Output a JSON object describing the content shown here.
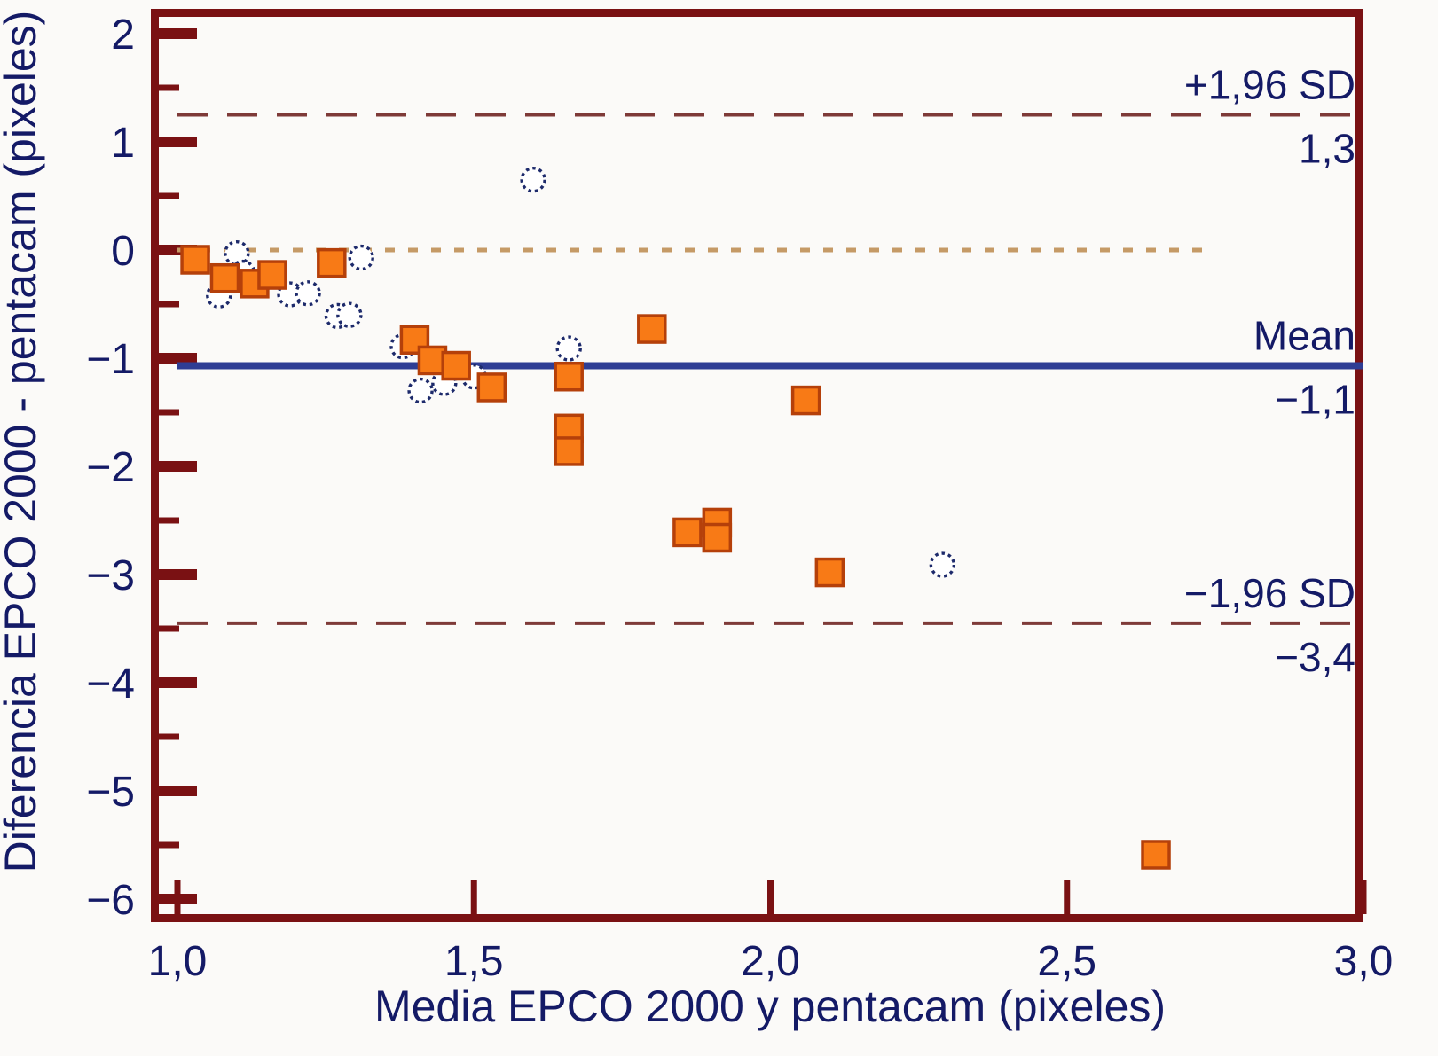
{
  "chart_data": {
    "type": "scatter",
    "title": "",
    "xlabel": "Media EPCO 2000 y pentacam (pixeles)",
    "ylabel": "Diferencia EPCO 2000 - pentacam (pixeles)",
    "xlim": [
      1.0,
      3.0
    ],
    "ylim": [
      -6.35,
      2.2
    ],
    "grid": false,
    "x_tick_values": [
      1.0,
      1.5,
      2.0,
      2.5,
      3.0
    ],
    "x_tick_labels": [
      "1,0",
      "1,5",
      "2,0",
      "2,5",
      "3,0"
    ],
    "y_tick_values": [
      2,
      1,
      0,
      -1,
      -2,
      -3,
      -4,
      -5,
      -6
    ],
    "y_tick_labels": [
      "2",
      "1",
      "0",
      "−1",
      "−2",
      "−3",
      "−4",
      "−5",
      "−6"
    ],
    "y_minor_tick_values": [
      1.5,
      0.5,
      -0.5,
      -1.5,
      -2.5,
      -3.5,
      -4.5,
      -5.5
    ],
    "reference_lines": [
      {
        "id": "upper-loa",
        "label": "+1,96 SD",
        "value_label": "1,3",
        "value": 1.25,
        "style": "dashed"
      },
      {
        "id": "mean",
        "label": "Mean",
        "value_label": "−1,1",
        "value": -1.07,
        "style": "solid"
      },
      {
        "id": "lower-loa",
        "label": "−1,96 SD",
        "value_label": "−3,4",
        "value": -3.45,
        "style": "dashed"
      },
      {
        "id": "zero",
        "label": "",
        "value_label": "",
        "value": 0,
        "style": "dotted",
        "x_start": 1.0,
        "x_end": 2.75
      }
    ],
    "series": [
      {
        "name": "filled-squares",
        "marker": "square",
        "points": [
          [
            1.03,
            -0.09
          ],
          [
            1.08,
            -0.26
          ],
          [
            1.13,
            -0.31
          ],
          [
            1.16,
            -0.23
          ],
          [
            1.26,
            -0.12
          ],
          [
            1.4,
            -0.83
          ],
          [
            1.43,
            -1.02
          ],
          [
            1.47,
            -1.07
          ],
          [
            1.53,
            -1.27
          ],
          [
            1.66,
            -1.17
          ],
          [
            1.66,
            -1.65
          ],
          [
            1.66,
            -1.86
          ],
          [
            1.8,
            -0.73
          ],
          [
            1.86,
            -2.61
          ],
          [
            1.91,
            -2.52
          ],
          [
            1.91,
            -2.66
          ],
          [
            2.06,
            -1.39
          ],
          [
            2.1,
            -2.98
          ],
          [
            2.65,
            -5.59
          ]
        ]
      },
      {
        "name": "open-circles",
        "marker": "circle",
        "points": [
          [
            1.07,
            -0.42
          ],
          [
            1.1,
            -0.03
          ],
          [
            1.11,
            -0.21
          ],
          [
            1.19,
            -0.41
          ],
          [
            1.22,
            -0.4
          ],
          [
            1.27,
            -0.61
          ],
          [
            1.29,
            -0.6
          ],
          [
            1.31,
            -0.07
          ],
          [
            1.38,
            -0.89
          ],
          [
            1.41,
            -1.3
          ],
          [
            1.45,
            -1.23
          ],
          [
            1.5,
            -1.17
          ],
          [
            1.6,
            0.65
          ],
          [
            1.66,
            -0.91
          ],
          [
            2.29,
            -2.91
          ]
        ]
      }
    ],
    "colors": {
      "axis": "#7a1113",
      "text": "#141a66",
      "mean_line": "#2e3d94",
      "loa_line": "#7e3a38",
      "zero_line": "#c59a66",
      "square_fill": "#f87a16",
      "square_edge": "#b5400a",
      "circle_edge": "#1d2a6b",
      "background": "#fbfaf8"
    }
  }
}
